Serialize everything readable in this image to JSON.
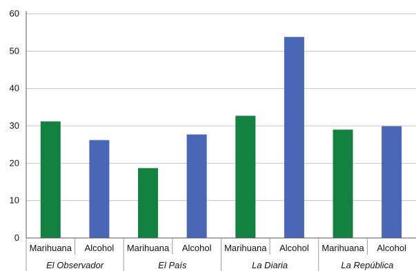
{
  "chart_data": {
    "type": "bar",
    "groups": [
      "El Observador",
      "El País",
      "La Diaria",
      "La República"
    ],
    "categories": [
      "Marihuana",
      "Alcohol"
    ],
    "series": [
      {
        "group": "El Observador",
        "values": [
          31.2,
          26.2
        ]
      },
      {
        "group": "El País",
        "values": [
          18.7,
          27.7
        ]
      },
      {
        "group": "La Diaria",
        "values": [
          32.7,
          53.8
        ]
      },
      {
        "group": "La República",
        "values": [
          29.0,
          29.9
        ]
      }
    ],
    "bar_colors": {
      "Marihuana": "#138140",
      "Alcohol": "#4a67b5"
    },
    "ylim": [
      0,
      60
    ],
    "yticks": [
      0,
      10,
      20,
      30,
      40,
      50,
      60
    ],
    "grid": true,
    "title": "",
    "xlabel": "",
    "ylabel": ""
  }
}
